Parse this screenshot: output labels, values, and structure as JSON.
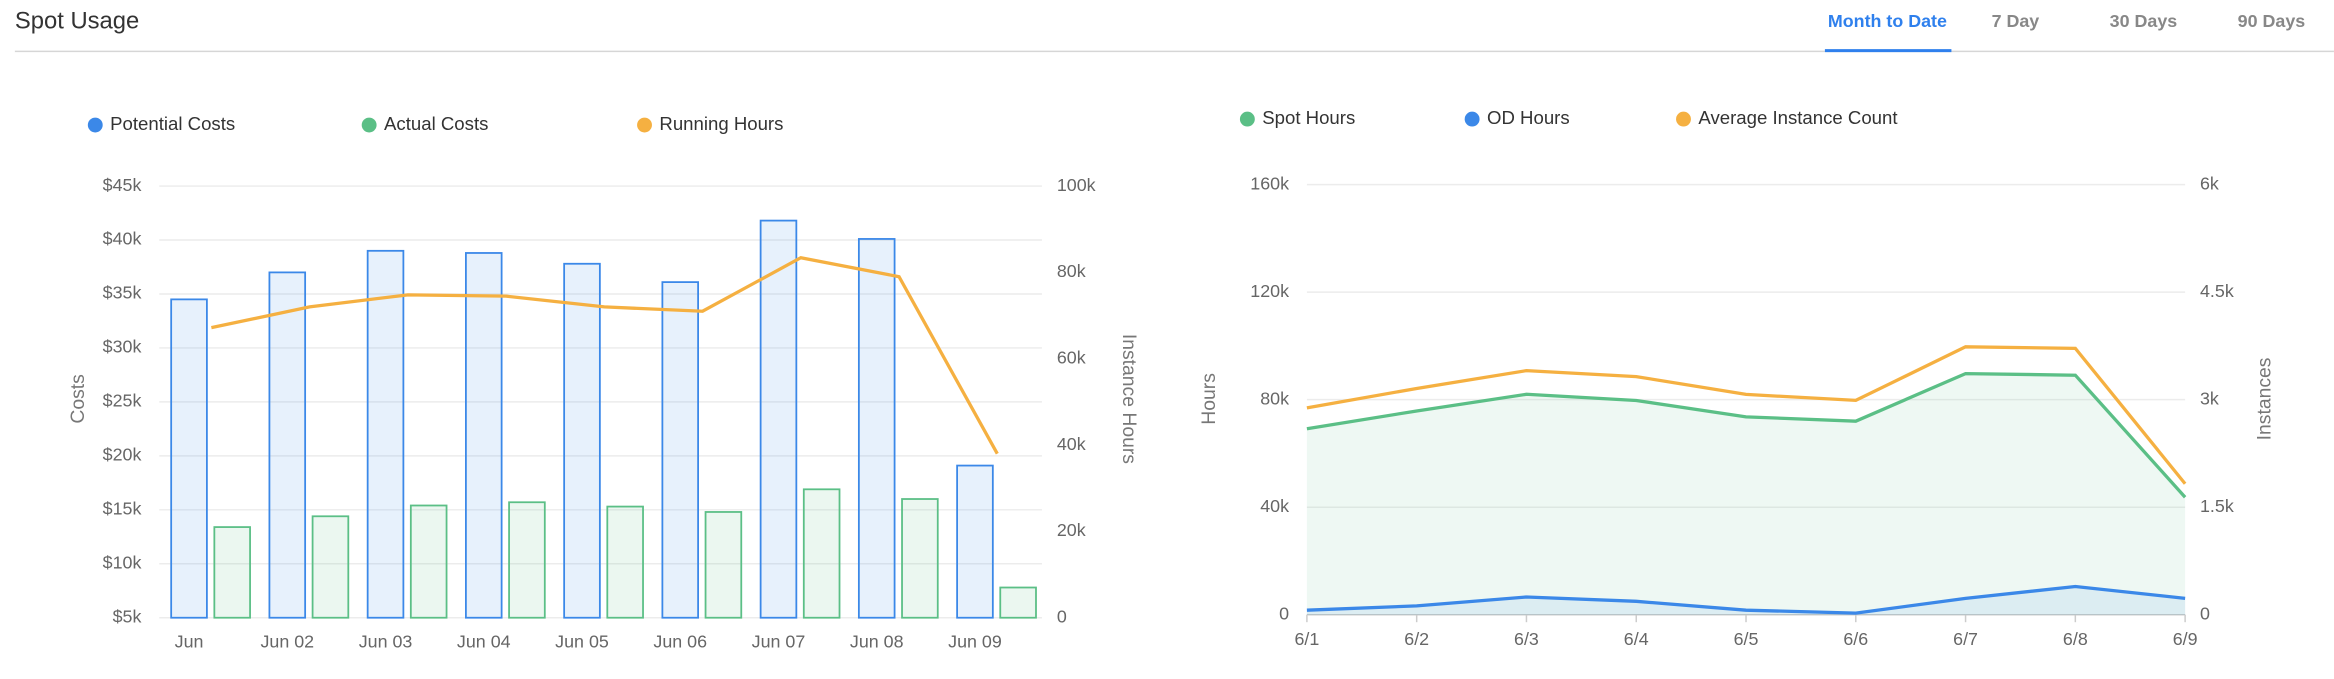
{
  "header": {
    "title": "Spot Usage",
    "tabs": [
      "Month to Date",
      "7 Day",
      "30 Days",
      "90 Days"
    ]
  },
  "chart_data": [
    {
      "type": "bar",
      "y_label": "Costs",
      "y2_label": "Instance Hours",
      "categories": [
        "Jun",
        "Jun 02",
        "Jun 03",
        "Jun 04",
        "Jun 05",
        "Jun 06",
        "Jun 07",
        "Jun 08",
        "Jun 09"
      ],
      "series": [
        {
          "name": "Potential Costs",
          "type": "bar",
          "color": "#3b88e8",
          "values": [
            34500,
            37000,
            39000,
            38800,
            37800,
            36100,
            41800,
            40100,
            19100
          ]
        },
        {
          "name": "Actual Costs",
          "type": "bar",
          "color": "#5bbf86",
          "values": [
            13400,
            14400,
            15400,
            15700,
            15300,
            14800,
            16900,
            16000,
            7800
          ]
        },
        {
          "name": "Running Hours",
          "type": "line",
          "axis": "y2",
          "color": "#f5b041",
          "values": [
            67200,
            72000,
            74800,
            74500,
            72000,
            71000,
            83400,
            79000,
            38000
          ]
        }
      ],
      "ylim": [
        5000,
        45000
      ],
      "yticks": [
        {
          "value": 5000,
          "label": "$5k"
        },
        {
          "value": 10000,
          "label": "$10k"
        },
        {
          "value": 15000,
          "label": "$15k"
        },
        {
          "value": 20000,
          "label": "$20k"
        },
        {
          "value": 25000,
          "label": "$25k"
        },
        {
          "value": 30000,
          "label": "$30k"
        },
        {
          "value": 35000,
          "label": "$35k"
        },
        {
          "value": 40000,
          "label": "$40k"
        },
        {
          "value": 45000,
          "label": "$45k"
        }
      ],
      "y2lim": [
        0,
        100000
      ],
      "y2ticks": [
        0,
        {
          "value": 20000,
          "label": "20k"
        },
        {
          "value": 40000,
          "label": "40k"
        },
        {
          "value": 60000,
          "label": "60k"
        },
        {
          "value": 80000,
          "label": "80k"
        },
        {
          "value": 100000,
          "label": "100k"
        }
      ],
      "grid": true
    },
    {
      "type": "area",
      "y_label": "Hours",
      "y2_label": "Instances",
      "categories": [
        "6/1",
        "6/2",
        "6/3",
        "6/4",
        "6/5",
        "6/6",
        "6/7",
        "6/8",
        "6/9"
      ],
      "series": [
        {
          "name": "Spot Hours",
          "type": "area",
          "color": "#5bbf86",
          "values": [
            69200,
            75800,
            82000,
            79700,
            73600,
            72000,
            89700,
            89100,
            43700
          ]
        },
        {
          "name": "OD Hours",
          "type": "area",
          "color": "#3b88e8",
          "values": [
            1700,
            3300,
            6600,
            5000,
            1700,
            600,
            6100,
            10500,
            6100
          ]
        },
        {
          "name": "Average Instance Count",
          "type": "line",
          "axis": "y2",
          "color": "#f5b041",
          "values": [
            2886,
            3156,
            3405,
            3322,
            3073,
            2990,
            3737,
            3716,
            1827
          ]
        }
      ],
      "ylim": [
        0,
        160000
      ],
      "yticks": [
        0,
        {
          "value": 40000,
          "label": "40k"
        },
        {
          "value": 80000,
          "label": "80k"
        },
        {
          "value": 120000,
          "label": "120k"
        },
        {
          "value": 160000,
          "label": "160k"
        }
      ],
      "y2lim": [
        0,
        6000
      ],
      "y2ticks": [
        0,
        {
          "value": 1500,
          "label": "1.5k"
        },
        {
          "value": 3000,
          "label": "3k"
        },
        {
          "value": 4500,
          "label": "4.5k"
        },
        {
          "value": 6000,
          "label": "6k"
        }
      ],
      "grid": true
    }
  ]
}
